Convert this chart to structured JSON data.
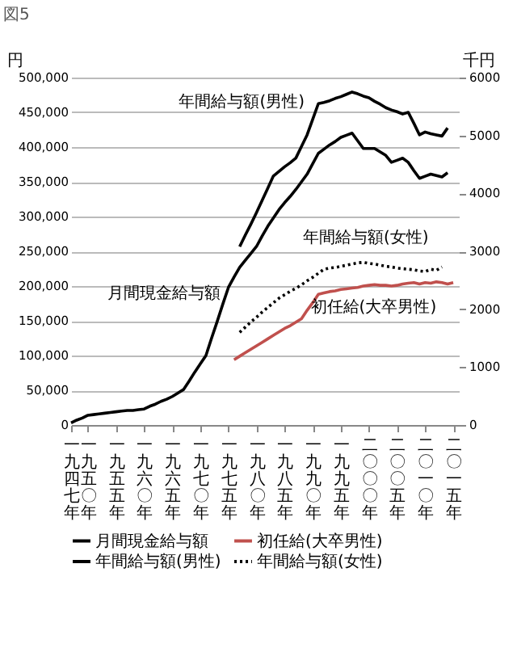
{
  "chart_data": {
    "type": "line",
    "title": "図5",
    "ylabel": "円",
    "y2label": "千円",
    "categories": [
      "一九四七年",
      null,
      null,
      "一九五〇年",
      null,
      null,
      null,
      null,
      "一九五五年",
      null,
      null,
      null,
      null,
      "一九六〇年",
      null,
      null,
      null,
      null,
      "一九六五年",
      null,
      null,
      null,
      null,
      "一九七〇年",
      null,
      null,
      null,
      null,
      "一九七五年",
      null,
      null,
      null,
      null,
      "一九八〇年",
      null,
      null,
      null,
      null,
      "一九八五年",
      null,
      null,
      null,
      null,
      "一九九〇年",
      null,
      null,
      null,
      null,
      "一九九五年",
      null,
      null,
      null,
      null,
      "二〇〇〇年",
      null,
      null,
      null,
      null,
      "二〇〇五年",
      null,
      null,
      null,
      null,
      "二〇一〇年",
      null,
      null,
      null,
      null,
      "二〇一五年",
      null
    ],
    "ylim": [
      0,
      500000
    ],
    "yticks": [
      0,
      {
        "value": 50000,
        "label": "50,000"
      },
      {
        "value": 100000,
        "label": "100,000"
      },
      {
        "value": 150000,
        "label": "150,000"
      },
      {
        "value": 200000,
        "label": "200,000"
      },
      {
        "value": 250000,
        "label": "250,000"
      },
      {
        "value": 300000,
        "label": "300,000"
      },
      {
        "value": 350000,
        "label": "350,000"
      },
      {
        "value": 400000,
        "label": "400,000"
      },
      {
        "value": 450000,
        "label": "450,000"
      },
      {
        "value": 500000,
        "label": "500,000"
      }
    ],
    "y2lim": [
      0,
      6000
    ],
    "y2ticks": [
      0,
      1000,
      2000,
      3000,
      4000,
      5000,
      6000
    ],
    "grid": "y",
    "legend": "bottom",
    "series": [
      {
        "name": "月間現金給与額",
        "color": "#000000",
        "line_style": "solid",
        "values": [
          3000,
          7000,
          10000,
          14000,
          15000,
          16000,
          17000,
          18000,
          19000,
          20000,
          21000,
          21000,
          22000,
          23000,
          27000,
          30000,
          34000,
          37000,
          41000,
          46000,
          51000,
          63000,
          76000,
          88000,
          100000,
          125000,
          149000,
          174000,
          198000,
          213000,
          227000,
          237000,
          247000,
          257000,
          272000,
          286000,
          298000,
          310000,
          320000,
          329000,
          339000,
          350000,
          361000,
          376000,
          391000,
          397000,
          403000,
          408000,
          414000,
          417000,
          420000,
          409000,
          398000,
          398000,
          398000,
          393000,
          388000,
          378000,
          381000,
          384000,
          378000,
          366000,
          355000,
          358000,
          361000,
          359000,
          357000,
          363000,
          null,
          null
        ]
      },
      {
        "name": "初任給(大卒男性)",
        "color": "#c0504d",
        "line_style": "solid",
        "values": [
          null,
          null,
          null,
          null,
          null,
          null,
          null,
          null,
          null,
          null,
          null,
          null,
          null,
          null,
          null,
          null,
          null,
          null,
          null,
          null,
          null,
          null,
          null,
          null,
          null,
          null,
          null,
          null,
          null,
          94000,
          99000,
          104000,
          109000,
          114000,
          119000,
          124000,
          129000,
          134000,
          139000,
          143000,
          148000,
          153000,
          165000,
          176000,
          188000,
          190000,
          192000,
          193000,
          195000,
          196000,
          197000,
          198000,
          200000,
          201000,
          202000,
          201000,
          201000,
          200000,
          201000,
          203000,
          204000,
          205000,
          203000,
          205000,
          204000,
          206000,
          205000,
          203000,
          205000,
          null
        ]
      },
      {
        "name": "年間給与額(男性)",
        "color": "#000000",
        "line_style": "solid",
        "axis": "y2",
        "values": [
          null,
          null,
          null,
          null,
          null,
          null,
          null,
          null,
          null,
          null,
          null,
          null,
          null,
          null,
          null,
          null,
          null,
          null,
          null,
          null,
          null,
          null,
          null,
          null,
          null,
          null,
          null,
          null,
          null,
          null,
          3080,
          3280,
          3470,
          3670,
          3880,
          4090,
          4300,
          4380,
          4460,
          4530,
          4610,
          4810,
          5010,
          5280,
          5550,
          5570,
          5600,
          5640,
          5670,
          5710,
          5750,
          5720,
          5680,
          5650,
          5590,
          5540,
          5480,
          5440,
          5410,
          5370,
          5400,
          5210,
          5010,
          5060,
          5030,
          5010,
          4990,
          5130,
          null,
          null
        ]
      },
      {
        "name": "年間給与額(女性)",
        "color": "#000000",
        "line_style": "dotted",
        "axis": "y2",
        "values": [
          null,
          null,
          null,
          null,
          null,
          null,
          null,
          null,
          null,
          null,
          null,
          null,
          null,
          null,
          null,
          null,
          null,
          null,
          null,
          null,
          null,
          null,
          null,
          null,
          null,
          null,
          null,
          null,
          null,
          null,
          1600,
          1690,
          1780,
          1860,
          1950,
          2030,
          2110,
          2190,
          2250,
          2310,
          2360,
          2420,
          2490,
          2550,
          2620,
          2690,
          2710,
          2720,
          2740,
          2760,
          2780,
          2800,
          2810,
          2790,
          2780,
          2760,
          2740,
          2730,
          2710,
          2700,
          2690,
          2680,
          2660,
          2650,
          2690,
          2670,
          2730,
          null,
          null,
          null
        ]
      }
    ],
    "annotations": [
      "年間給与額(男性)",
      "年間給与額(女性)",
      "月間現金給与額",
      "初任給(大卒男性)"
    ]
  }
}
